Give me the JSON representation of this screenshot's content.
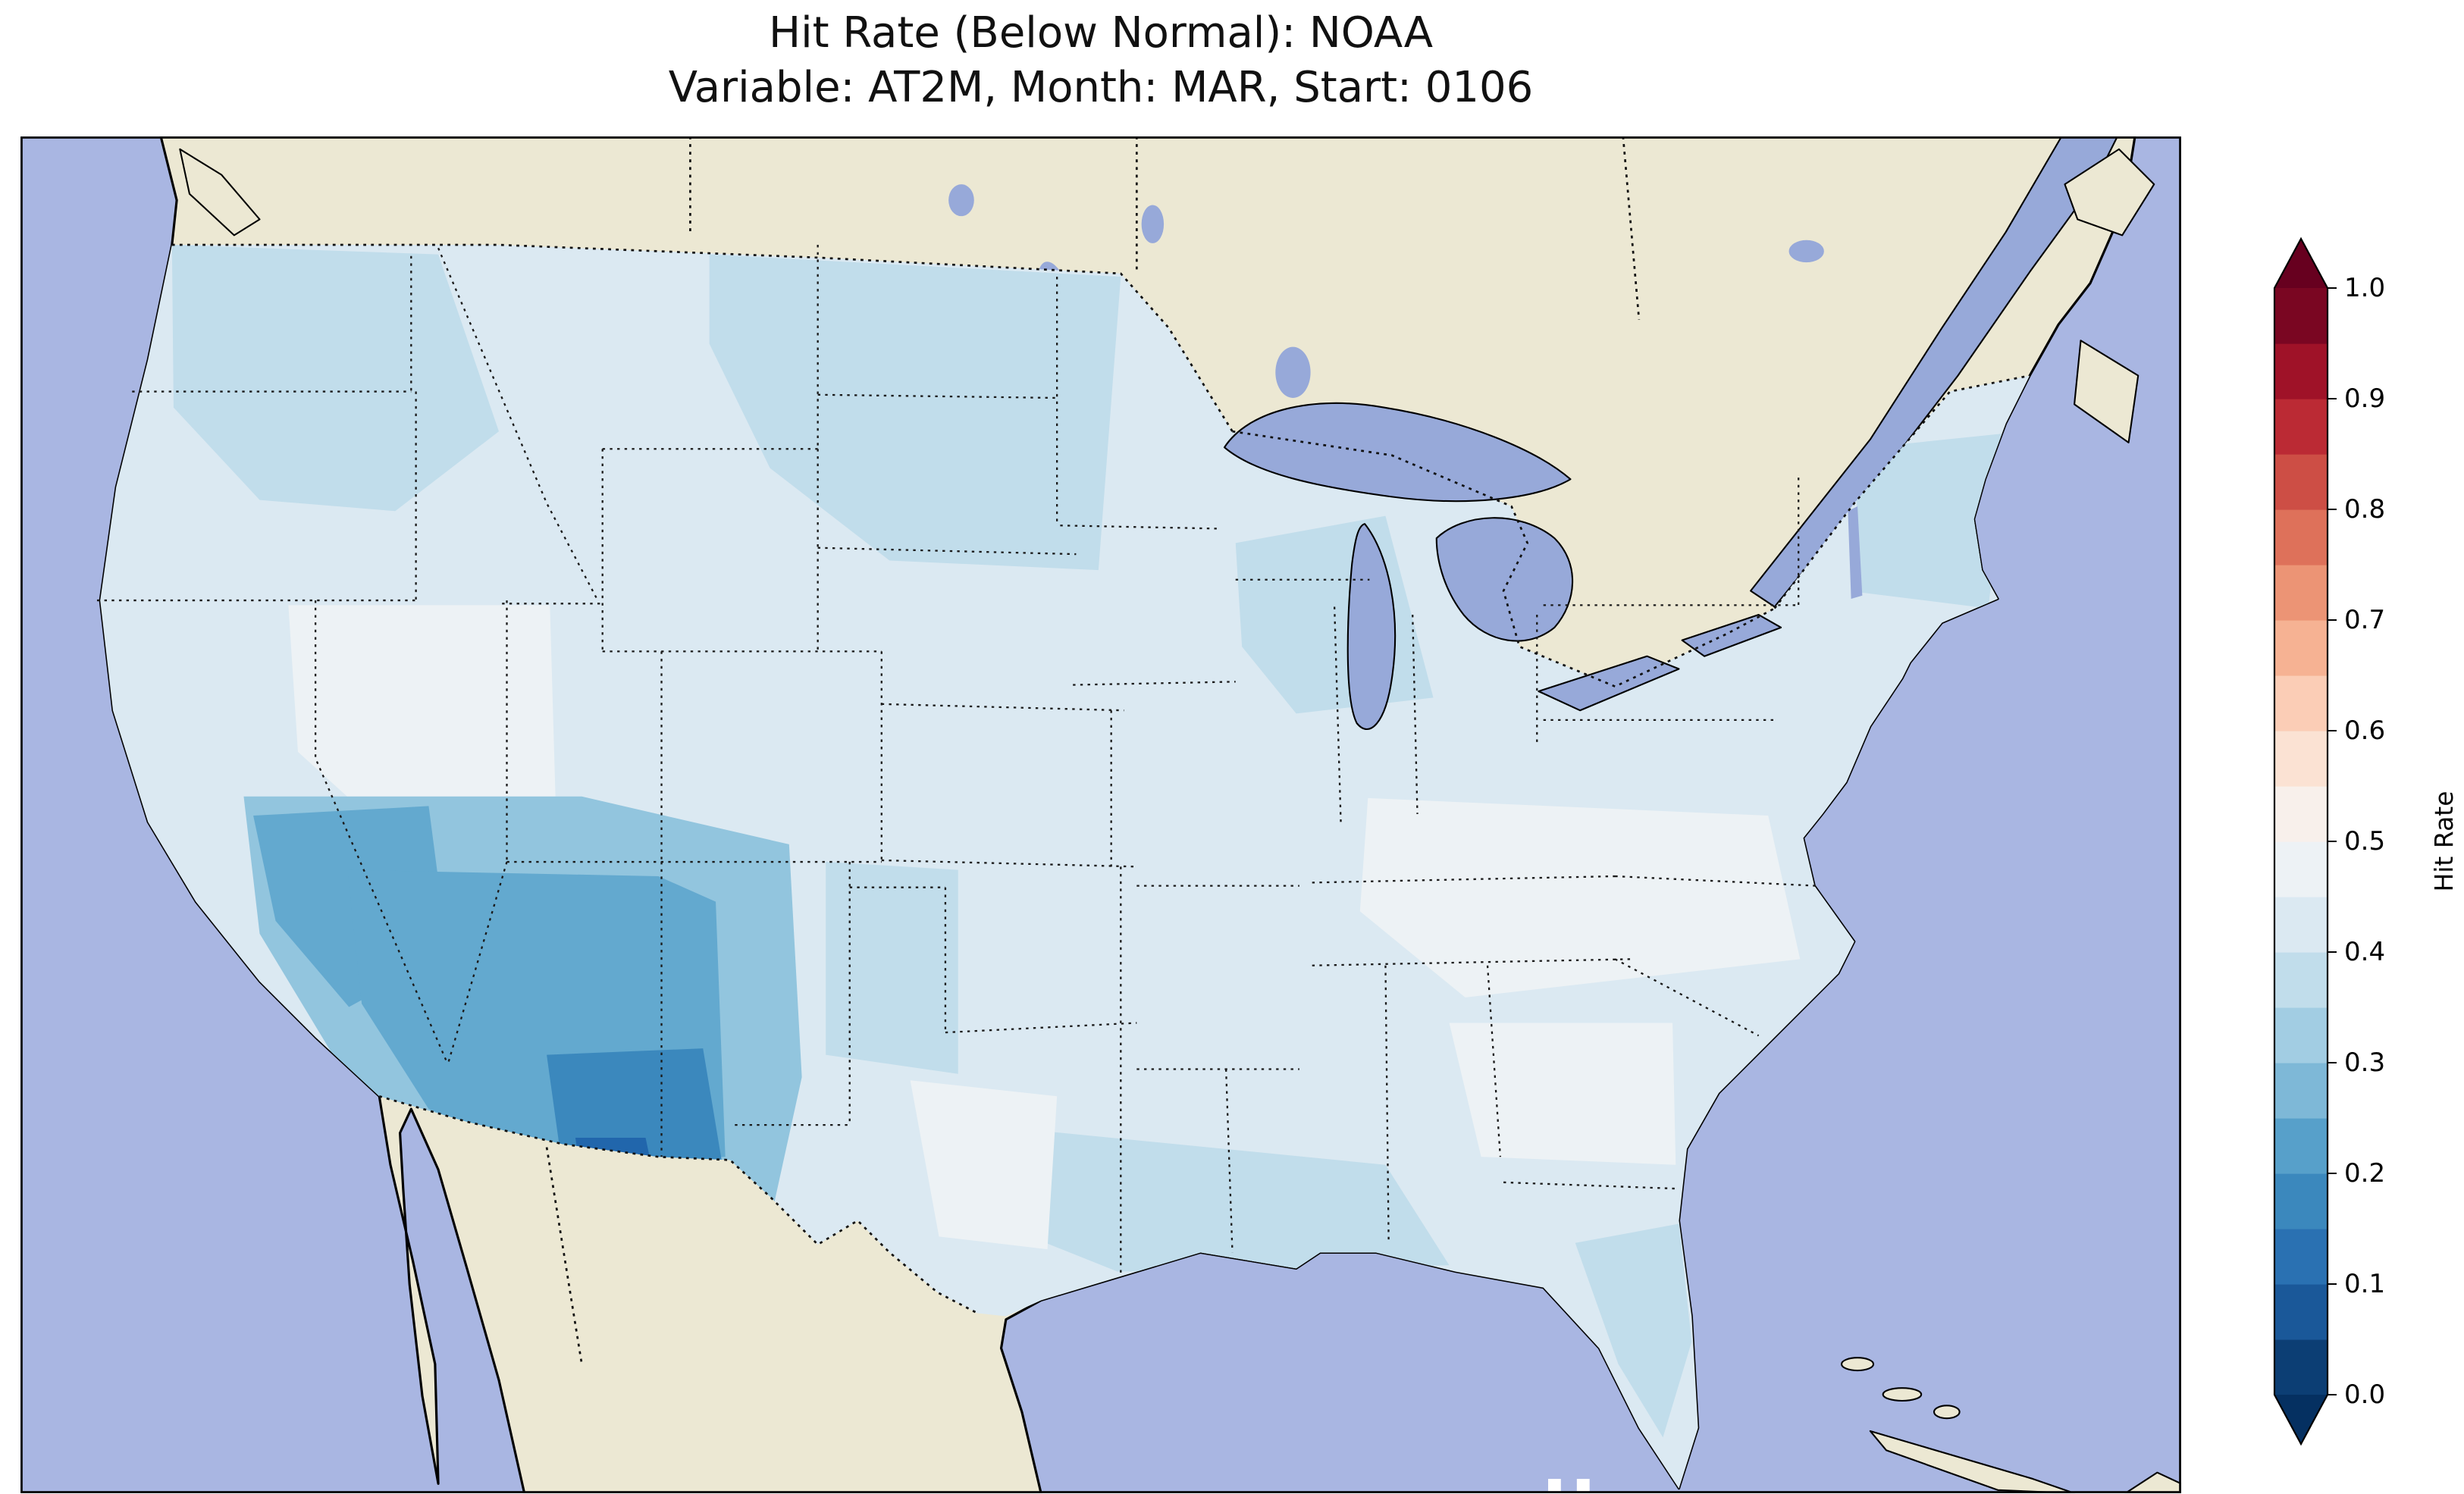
{
  "figure": {
    "title_line1": "Hit Rate (Below Normal): NOAA",
    "title_line2": "Variable: AT2M, Month: MAR, Start: 0106",
    "background": "#ffffff"
  },
  "colorbar": {
    "label": "Hit Rate",
    "ticks": [
      {
        "value": 1.0,
        "label": "1.0"
      },
      {
        "value": 0.9,
        "label": "0.9"
      },
      {
        "value": 0.8,
        "label": "0.8"
      },
      {
        "value": 0.7,
        "label": "0.7"
      },
      {
        "value": 0.6,
        "label": "0.6"
      },
      {
        "value": 0.5,
        "label": "0.5"
      },
      {
        "value": 0.4,
        "label": "0.4"
      },
      {
        "value": 0.3,
        "label": "0.3"
      },
      {
        "value": 0.2,
        "label": "0.2"
      },
      {
        "value": 0.1,
        "label": "0.1"
      },
      {
        "value": 0.0,
        "label": "0.0"
      }
    ],
    "bands_bottom_to_top": [
      "#0c3e74",
      "#1a5899",
      "#2a71b2",
      "#3b88bd",
      "#57a0ca",
      "#7eb8d7",
      "#a2cde3",
      "#c1ddeb",
      "#dbe9f2",
      "#edf2f5",
      "#f8f0eb",
      "#fbe2d3",
      "#fbcdb6",
      "#f6b293",
      "#ec9475",
      "#de715a",
      "#cd4e45",
      "#bb2a34",
      "#9f1228",
      "#7a0622"
    ],
    "extend_under": "#053061",
    "extend_over": "#67001f",
    "outline_color": "#000000"
  },
  "map": {
    "palette": {
      "ocean": "#a9b6e2",
      "land": "#ece8d3",
      "lake": "#97a9d9",
      "us_base": "#dbe9f2",
      "light": "#c1ddeb",
      "pale": "#edf2f5",
      "halo": "#92c5de",
      "mid": "#63a9cf",
      "core": "#3b88bd",
      "deep": "#2166ac",
      "missing": "#ffffff"
    }
  },
  "chart_data": {
    "type": "heatmap",
    "title": "Hit Rate (Below Normal): NOAA",
    "subtitle": "Variable: AT2M, Month: MAR, Start: 0106",
    "geography": "Contiguous United States (gridded forecast hit-rate map) with surrounding Canada, Mexico, Pacific, Atlantic and Gulf of Mexico",
    "colorbar": {
      "label": "Hit Rate",
      "range": [
        0.0,
        1.0
      ],
      "tick_step": 0.1,
      "band_step": 0.05,
      "colormap": "RdBu_r (blue = low, red = high), discrete bands, extend both ends",
      "legend_position": "right"
    },
    "regions": [
      {
        "region": "Southern California coastal blob",
        "approx_hit_rate": 0.3
      },
      {
        "region": "Arizona",
        "approx_hit_rate": 0.25
      },
      {
        "region": "New Mexico",
        "approx_hit_rate": 0.25
      },
      {
        "region": "West Texas / Big Bend",
        "approx_hit_rate": 0.2
      },
      {
        "region": "Southern New Mexico core (map minimum)",
        "approx_hit_rate": 0.1
      },
      {
        "region": "Nevada / Utah",
        "approx_hit_rate": 0.45
      },
      {
        "region": "Pacific Northwest interior",
        "approx_hit_rate": 0.4
      },
      {
        "region": "Northern Plains (MT, Dakotas, MN)",
        "approx_hit_rate": 0.35
      },
      {
        "region": "Central Plains (NE, KS, OK)",
        "approx_hit_rate": 0.45
      },
      {
        "region": "Central and South Texas",
        "approx_hit_rate": 0.45
      },
      {
        "region": "Gulf Coast (LA, MS, AL)",
        "approx_hit_rate": 0.4
      },
      {
        "region": "Upper Midwest (WI, MI)",
        "approx_hit_rate": 0.4
      },
      {
        "region": "Ohio and Tennessee Valleys",
        "approx_hit_rate": 0.5
      },
      {
        "region": "Southeast (GA, AL, Carolinas)",
        "approx_hit_rate": 0.45
      },
      {
        "region": "Florida peninsula",
        "approx_hit_rate": 0.35
      },
      {
        "region": "Mid-Atlantic",
        "approx_hit_rate": 0.45
      },
      {
        "region": "New England",
        "approx_hit_rate": 0.4
      }
    ]
  }
}
